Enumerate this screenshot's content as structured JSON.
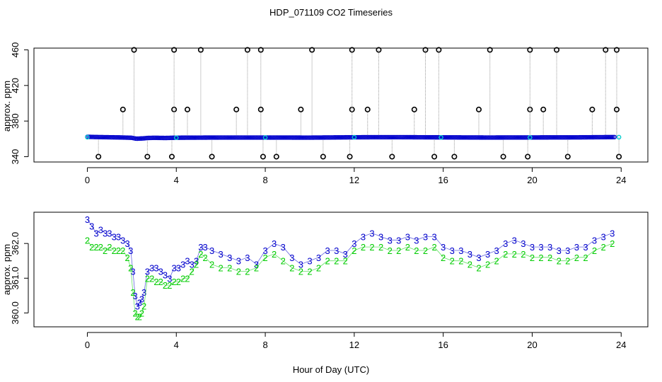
{
  "title": "HDP_071109  CO2 Timeseries",
  "xlabel": "Hour of Day (UTC)",
  "chart_data": [
    {
      "type": "scatter",
      "panel": "top",
      "ylabel": "approx. ppm",
      "xlim": [
        -2.4,
        25.2
      ],
      "ylim": [
        334,
        462
      ],
      "x_ticks": [
        0,
        4,
        8,
        12,
        16,
        20,
        24
      ],
      "x_tick_labels": [
        "0",
        "4",
        "8",
        "12",
        "16",
        "20",
        "24"
      ],
      "y_ticks": [
        340,
        380,
        420,
        460
      ],
      "y_tick_labels": [
        "340",
        "380",
        "420",
        "460"
      ],
      "baseline": {
        "name": "CO2",
        "x": [
          0,
          0.5,
          1.0,
          1.5,
          2.0,
          2.2,
          2.5,
          2.7,
          3.0,
          3.5,
          4.0,
          6.0,
          8.0,
          10.0,
          12.0,
          14.0,
          16.0,
          18.0,
          20.0,
          22.0,
          23.7
        ],
        "values": [
          362.3,
          362.0,
          361.8,
          361.6,
          361.2,
          360.2,
          360.5,
          361.0,
          361.2,
          361.0,
          361.3,
          361.5,
          361.5,
          361.4,
          361.8,
          361.9,
          361.7,
          361.5,
          361.6,
          361.7,
          362.0
        ],
        "color": "#0000cc"
      },
      "spikes": {
        "x": [
          0.5,
          1.6,
          2.1,
          2.7,
          3.8,
          3.9,
          3.9,
          4.5,
          5.1,
          5.6,
          6.7,
          7.2,
          7.8,
          7.8,
          7.9,
          8.5,
          9.6,
          10.1,
          10.6,
          11.8,
          11.9,
          11.9,
          12.6,
          13.1,
          13.7,
          14.7,
          15.2,
          15.6,
          15.8,
          16.5,
          17.6,
          18.1,
          18.7,
          19.8,
          19.9,
          19.9,
          20.5,
          21.1,
          21.6,
          22.7,
          23.3,
          23.8,
          23.8,
          23.9
        ],
        "values": [
          340,
          393,
          460,
          340,
          340,
          393,
          460,
          393,
          460,
          340,
          393,
          460,
          460,
          393,
          340,
          340,
          393,
          460,
          340,
          340,
          393,
          460,
          393,
          460,
          340,
          393,
          460,
          340,
          460,
          340,
          393,
          460,
          340,
          340,
          393,
          460,
          393,
          460,
          340,
          393,
          460,
          460,
          393,
          340
        ]
      },
      "highlight_points": {
        "color": "#00cccc",
        "x": [
          0.0,
          4.0,
          8.0,
          12.0,
          15.9,
          19.9,
          23.9
        ],
        "values": [
          361.9,
          361.3,
          361.5,
          361.8,
          361.7,
          361.6,
          361.9
        ]
      }
    },
    {
      "type": "scatter",
      "panel": "bottom",
      "ylabel": "approx. ppm",
      "xlim": [
        -2.4,
        25.2
      ],
      "ylim": [
        359.6,
        362.9
      ],
      "x_ticks": [
        0,
        4,
        8,
        12,
        16,
        20,
        24
      ],
      "x_tick_labels": [
        "0",
        "4",
        "8",
        "12",
        "16",
        "20",
        "24"
      ],
      "y_ticks": [
        360.0,
        361.0,
        362.0
      ],
      "y_tick_labels": [
        "360.0",
        "361.0",
        "362.0"
      ],
      "series": [
        {
          "name": "3",
          "marker": "3",
          "color": "#0000cc",
          "x": [
            0.0,
            0.2,
            0.4,
            0.6,
            0.8,
            1.0,
            1.2,
            1.4,
            1.6,
            1.8,
            1.95,
            2.05,
            2.15,
            2.25,
            2.35,
            2.45,
            2.55,
            2.7,
            2.9,
            3.1,
            3.3,
            3.5,
            3.7,
            3.9,
            4.1,
            4.3,
            4.5,
            4.7,
            4.9,
            5.1,
            5.3,
            5.6,
            6.0,
            6.4,
            6.8,
            7.2,
            7.6,
            8.0,
            8.4,
            8.8,
            9.2,
            9.6,
            10.0,
            10.4,
            10.8,
            11.2,
            11.6,
            12.0,
            12.4,
            12.8,
            13.2,
            13.6,
            14.0,
            14.4,
            14.8,
            15.2,
            15.6,
            16.0,
            16.4,
            16.8,
            17.2,
            17.6,
            18.0,
            18.4,
            18.8,
            19.2,
            19.6,
            20.0,
            20.4,
            20.8,
            21.2,
            21.6,
            22.0,
            22.4,
            22.8,
            23.2,
            23.6
          ],
          "values": [
            362.7,
            362.5,
            362.3,
            362.4,
            362.3,
            362.3,
            362.2,
            362.2,
            362.1,
            362.0,
            361.8,
            361.2,
            360.5,
            360.2,
            360.3,
            360.4,
            360.6,
            361.2,
            361.3,
            361.3,
            361.2,
            361.1,
            361.0,
            361.3,
            361.3,
            361.4,
            361.5,
            361.4,
            361.5,
            361.9,
            361.9,
            361.8,
            361.7,
            361.6,
            361.5,
            361.6,
            361.4,
            361.8,
            362.0,
            361.9,
            361.6,
            361.4,
            361.5,
            361.6,
            361.8,
            361.8,
            361.7,
            362.0,
            362.2,
            362.3,
            362.2,
            362.1,
            362.1,
            362.2,
            362.1,
            362.2,
            362.2,
            361.9,
            361.8,
            361.8,
            361.7,
            361.6,
            361.7,
            361.8,
            362.0,
            362.1,
            362.0,
            361.9,
            361.9,
            361.9,
            361.8,
            361.8,
            361.9,
            361.9,
            362.1,
            362.2,
            362.3
          ]
        },
        {
          "name": "2",
          "marker": "2",
          "color": "#00cc00",
          "x": [
            0.0,
            0.2,
            0.4,
            0.6,
            0.8,
            1.0,
            1.2,
            1.4,
            1.6,
            1.8,
            1.95,
            2.05,
            2.15,
            2.25,
            2.35,
            2.45,
            2.55,
            2.7,
            2.9,
            3.1,
            3.3,
            3.5,
            3.7,
            3.9,
            4.1,
            4.3,
            4.5,
            4.7,
            4.9,
            5.1,
            5.3,
            5.6,
            6.0,
            6.4,
            6.8,
            7.2,
            7.6,
            8.0,
            8.4,
            8.8,
            9.2,
            9.6,
            10.0,
            10.4,
            10.8,
            11.2,
            11.6,
            12.0,
            12.4,
            12.8,
            13.2,
            13.6,
            14.0,
            14.4,
            14.8,
            15.2,
            15.6,
            16.0,
            16.4,
            16.8,
            17.2,
            17.6,
            18.0,
            18.4,
            18.8,
            19.2,
            19.6,
            20.0,
            20.4,
            20.8,
            21.2,
            21.6,
            22.0,
            22.4,
            22.8,
            23.2,
            23.6
          ],
          "values": [
            362.1,
            361.9,
            361.9,
            361.9,
            361.8,
            361.9,
            361.8,
            361.8,
            361.8,
            361.6,
            361.3,
            360.6,
            360.0,
            359.9,
            359.9,
            360.0,
            360.2,
            361.0,
            361.0,
            360.9,
            360.9,
            360.8,
            360.8,
            360.9,
            360.9,
            361.0,
            361.0,
            361.2,
            361.4,
            361.7,
            361.6,
            361.4,
            361.3,
            361.3,
            361.2,
            361.2,
            361.3,
            361.6,
            361.7,
            361.5,
            361.3,
            361.2,
            361.2,
            361.3,
            361.5,
            361.5,
            361.5,
            361.8,
            361.9,
            361.9,
            361.9,
            361.8,
            361.8,
            361.9,
            361.8,
            361.8,
            361.9,
            361.6,
            361.5,
            361.5,
            361.4,
            361.3,
            361.4,
            361.5,
            361.7,
            361.7,
            361.7,
            361.6,
            361.6,
            361.6,
            361.5,
            361.5,
            361.6,
            361.6,
            361.8,
            361.9,
            362.0
          ]
        }
      ]
    }
  ]
}
